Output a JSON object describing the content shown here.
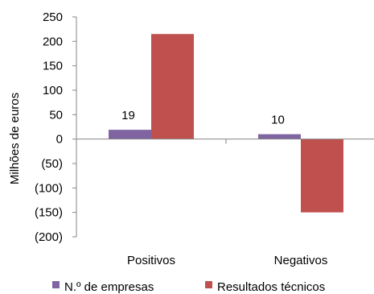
{
  "chart_data": {
    "type": "bar",
    "categories": [
      "Positivos",
      "Negativos"
    ],
    "series": [
      {
        "name": "N.º de empresas",
        "values": [
          19,
          10
        ],
        "color": "#8064A2",
        "data_labels": [
          "19",
          "10"
        ]
      },
      {
        "name": "Resultados técnicos",
        "values": [
          215,
          -150
        ],
        "color": "#C0504D"
      }
    ],
    "ylabel": "Milhões de euros",
    "xlabel": "",
    "ylim": [
      -200,
      250
    ],
    "y_ticks": [
      {
        "value": 250,
        "label": "250"
      },
      {
        "value": 200,
        "label": "200"
      },
      {
        "value": 150,
        "label": "150"
      },
      {
        "value": 100,
        "label": "100"
      },
      {
        "value": 50,
        "label": "50"
      },
      {
        "value": 0,
        "label": "0"
      },
      {
        "value": -50,
        "label": "(50)"
      },
      {
        "value": -100,
        "label": "(100)"
      },
      {
        "value": -150,
        "label": "(150)"
      },
      {
        "value": -200,
        "label": "(200)"
      }
    ],
    "grid": false,
    "legend_position": "bottom"
  }
}
